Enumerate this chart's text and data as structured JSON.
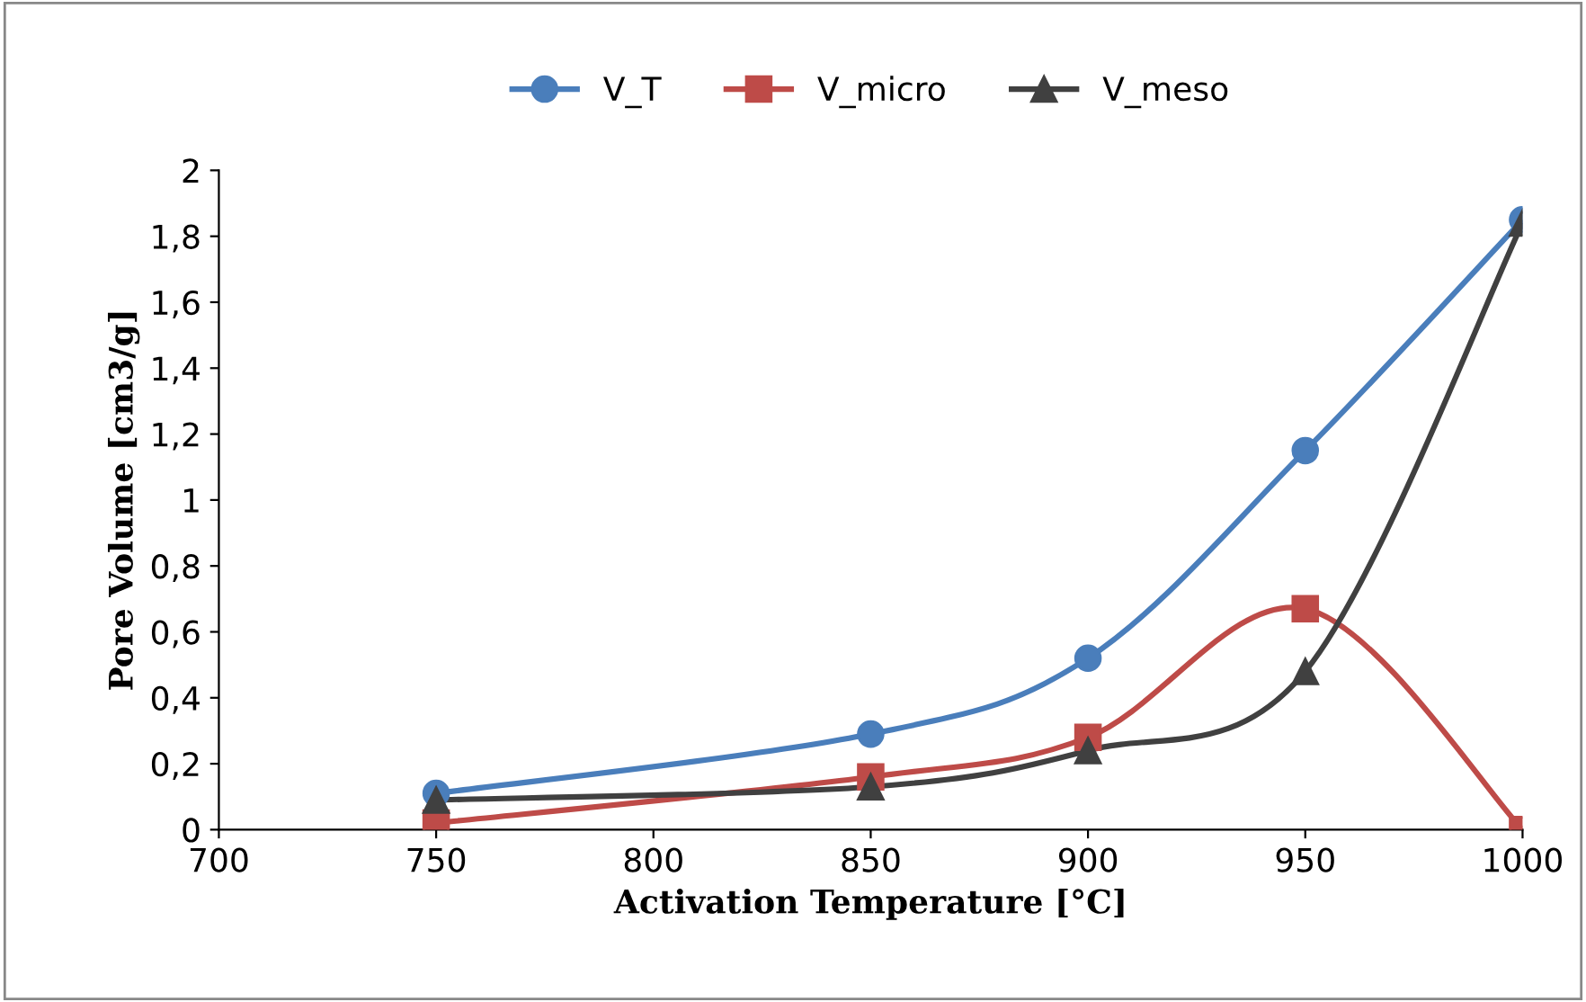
{
  "chart_data": {
    "type": "line",
    "xlabel": "Activation Temperature [°C]",
    "ylabel": "Pore Volume [cm3/g]",
    "x": [
      750,
      850,
      900,
      950,
      1000
    ],
    "series": [
      {
        "name": "V_T",
        "color": "#4a7ebb",
        "marker": "circle",
        "values": [
          0.11,
          0.29,
          0.52,
          1.15,
          1.85
        ]
      },
      {
        "name": "V_micro",
        "color": "#be4b48",
        "marker": "square",
        "values": [
          0.02,
          0.16,
          0.28,
          0.67,
          0
        ]
      },
      {
        "name": "V_meso",
        "color": "#404040",
        "marker": "triangle",
        "values": [
          0.09,
          0.13,
          0.24,
          0.48,
          1.84
        ]
      }
    ],
    "xlim": [
      700,
      1000
    ],
    "xticks": [
      700,
      750,
      800,
      850,
      900,
      950,
      1000
    ],
    "ylim": [
      0,
      2
    ],
    "yticks": [
      0,
      {
        "value": 0.2,
        "label": "0,2"
      },
      {
        "value": 0.4,
        "label": "0,4"
      },
      {
        "value": 0.6,
        "label": "0,6"
      },
      {
        "value": 0.8,
        "label": "0,8"
      },
      1,
      {
        "value": 1.2,
        "label": "1,2"
      },
      {
        "value": 1.4,
        "label": "1,4"
      },
      {
        "value": 1.6,
        "label": "1,6"
      },
      {
        "value": 1.8,
        "label": "1,8"
      },
      2
    ],
    "grid": false,
    "legend": "top",
    "line_style": "solid"
  }
}
